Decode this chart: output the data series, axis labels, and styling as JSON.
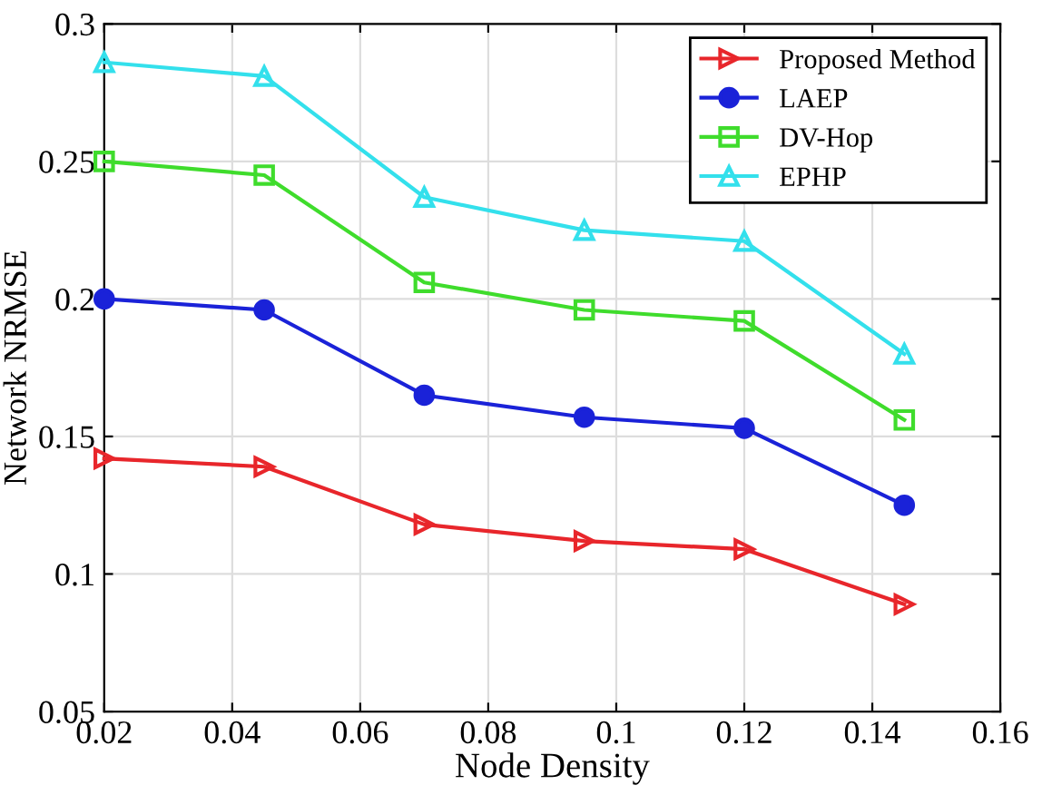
{
  "chart_data": {
    "type": "line",
    "xlabel": "Node Density",
    "ylabel": "Network NRMSE",
    "x": [
      0.02,
      0.045,
      0.07,
      0.095,
      0.12,
      0.145
    ],
    "series": [
      {
        "name": "Proposed Method",
        "color": "#e8262b",
        "marker": "triangle_right",
        "values": [
          0.142,
          0.139,
          0.118,
          0.112,
          0.109,
          0.089
        ]
      },
      {
        "name": "LAEP",
        "color": "#1a22d8",
        "marker": "circle",
        "values": [
          0.2,
          0.196,
          0.165,
          0.157,
          0.153,
          0.125
        ]
      },
      {
        "name": "DV-Hop",
        "color": "#3fdc2c",
        "marker": "square",
        "values": [
          0.25,
          0.245,
          0.206,
          0.196,
          0.192,
          0.156
        ]
      },
      {
        "name": "EPHP",
        "color": "#33e0ec",
        "marker": "triangle",
        "values": [
          0.286,
          0.281,
          0.237,
          0.225,
          0.221,
          0.18
        ]
      }
    ],
    "xlim": [
      0.02,
      0.16
    ],
    "xticks": [
      0.02,
      0.04,
      0.06,
      0.08,
      0.1,
      0.12,
      0.14,
      0.16
    ],
    "ylim": [
      0.05,
      0.3
    ],
    "yticks": [
      0.05,
      0.1,
      0.15,
      0.2,
      0.25,
      0.3
    ],
    "grid": true,
    "legend": "top right",
    "line_style": "solid"
  }
}
